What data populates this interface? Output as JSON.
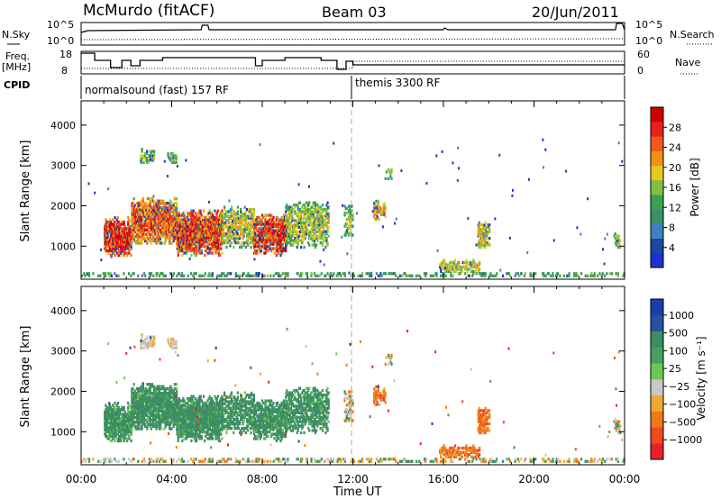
{
  "header": {
    "site": "McMurdo (fitACF)",
    "beam": "Beam 03",
    "date": "20/Jun/2011"
  },
  "strip": {
    "nsky_label": "N.Sky",
    "nsearch_label": "N.Search",
    "left_ticks": [
      "10^5",
      "10^0"
    ],
    "right_ticks": [
      "10^5",
      "10^0"
    ],
    "freq_label_line1": "Freq.",
    "freq_label_line2": "[MHz]",
    "freq_ticks": [
      "18",
      "8"
    ],
    "nave_label": "Nave",
    "nave_ticks": [
      "60",
      "0"
    ],
    "cpid_label": "CPID",
    "cpid_mode1": "normalsound (fast) 157 RF",
    "cpid_mode2": "themis 3300 RF"
  },
  "colors": {
    "velocity": [
      "#e8202a",
      "#f04820",
      "#f07818",
      "#f0a830",
      "#c8c8c8",
      "#6cc850",
      "#48a060",
      "#3c8c64",
      "#2850a0",
      "#1c3ca8"
    ],
    "power": [
      "#2030d0",
      "#1848a0",
      "#4080c0",
      "#3c9068",
      "#3ca050",
      "#80c040",
      "#e8c820",
      "#f09018",
      "#f05820",
      "#e82020",
      "#d00000"
    ]
  },
  "chart_data": [
    {
      "type": "heatmap",
      "name": "power",
      "ylabel": "Slant Range [km]",
      "yticks": [
        "4000",
        "3000",
        "2000",
        "1000"
      ],
      "xticks": [
        "00:00",
        "04:00",
        "08:00",
        "12:00",
        "16:00",
        "20:00",
        "00:00"
      ],
      "ylim": [
        180,
        4600
      ],
      "xlim": [
        0,
        24
      ],
      "colorbar_label": "Power [dB]",
      "colorbar_ticks": [
        "28",
        "24",
        "20",
        "16",
        "12",
        "8",
        "4"
      ],
      "clim": [
        0,
        32
      ]
    },
    {
      "type": "heatmap",
      "name": "velocity",
      "ylabel": "Slant Range [km]",
      "yticks": [
        "4000",
        "3000",
        "2000",
        "1000"
      ],
      "xticks": [
        "00:00",
        "04:00",
        "08:00",
        "12:00",
        "16:00",
        "20:00",
        "00:00"
      ],
      "xlabel": "Time UT",
      "ylim": [
        180,
        4600
      ],
      "xlim": [
        0,
        24
      ],
      "colorbar_label": "Velocity [m s⁻¹]",
      "colorbar_ticks": [
        "1000",
        "500",
        "100",
        "25",
        "−25",
        "−100",
        "−500",
        "−1000"
      ]
    }
  ]
}
